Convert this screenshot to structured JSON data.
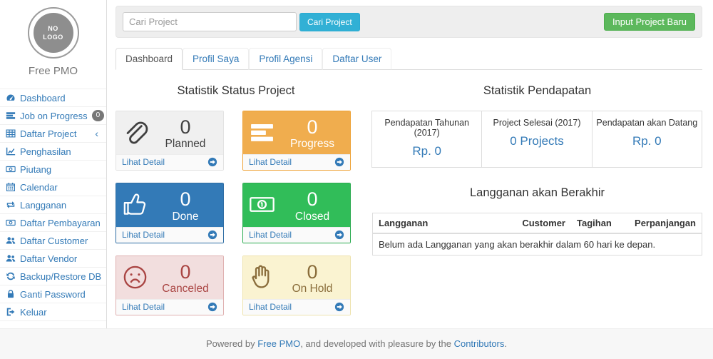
{
  "sidebar": {
    "logo_lines": [
      "NO",
      "LOGO"
    ],
    "brand": "Free PMO",
    "items": [
      {
        "label": "Dashboard",
        "icon": "dashboard-icon"
      },
      {
        "label": "Job on Progress",
        "icon": "tasks-icon",
        "badge": "0"
      },
      {
        "label": "Daftar Project",
        "icon": "table-icon",
        "chevron": "‹"
      },
      {
        "label": "Penghasilan",
        "icon": "line-chart-icon"
      },
      {
        "label": "Piutang",
        "icon": "money-icon"
      },
      {
        "label": "Calendar",
        "icon": "calendar-icon"
      },
      {
        "label": "Langganan",
        "icon": "retweet-icon"
      },
      {
        "label": "Daftar Pembayaran",
        "icon": "money-icon"
      },
      {
        "label": "Daftar Customer",
        "icon": "users-icon"
      },
      {
        "label": "Daftar Vendor",
        "icon": "users-icon"
      },
      {
        "label": "Backup/Restore DB",
        "icon": "refresh-icon"
      },
      {
        "label": "Ganti Password",
        "icon": "lock-icon"
      },
      {
        "label": "Keluar",
        "icon": "sign-out-icon"
      }
    ]
  },
  "topbar": {
    "search_placeholder": "Cari Project",
    "search_button": "Cari Project",
    "new_project_button": "Input Project Baru"
  },
  "tabs": [
    {
      "label": "Dashboard",
      "active": true
    },
    {
      "label": "Profil Saya"
    },
    {
      "label": "Profil Agensi"
    },
    {
      "label": "Daftar User"
    }
  ],
  "status_section": {
    "title": "Statistik Status Project",
    "detail_link": "Lihat Detail",
    "cards": [
      {
        "label": "Planned",
        "value": "0",
        "icon": "paperclip-icon",
        "theme": "default"
      },
      {
        "label": "Progress",
        "value": "0",
        "icon": "tasks-big-icon",
        "theme": "warning"
      },
      {
        "label": "Done",
        "value": "0",
        "icon": "thumbs-up-icon",
        "theme": "primary"
      },
      {
        "label": "Closed",
        "value": "0",
        "icon": "money-bill-icon",
        "theme": "success"
      },
      {
        "label": "Canceled",
        "value": "0",
        "icon": "frown-icon",
        "theme": "danger"
      },
      {
        "label": "On Hold",
        "value": "0",
        "icon": "hand-icon",
        "theme": "onhold"
      }
    ]
  },
  "income_section": {
    "title": "Statistik Pendapatan",
    "stats": [
      {
        "label": "Pendapatan Tahunan (2017)",
        "value": "Rp. 0"
      },
      {
        "label": "Project Selesai (2017)",
        "value": "0 Projects"
      },
      {
        "label": "Pendapatan akan Datang",
        "value": "Rp. 0"
      }
    ]
  },
  "subscription_section": {
    "title": "Langganan akan Berakhir",
    "columns": [
      "Langganan",
      "Customer",
      "Tagihan",
      "Perpanjangan"
    ],
    "empty_message": "Belum ada Langganan yang akan berakhir dalam 60 hari ke depan."
  },
  "footer": {
    "prefix": "Powered by ",
    "link1": "Free PMO",
    "middle": ", and developed with pleasure by the ",
    "link2": "Contributors",
    "suffix": "."
  },
  "colors": {
    "link_primary": "#337ab7",
    "button_info": "#31b0d5",
    "button_success": "#5cb85c",
    "card_warning": "#f0ad4e",
    "card_primary": "#337ab7",
    "card_success": "#31bd59",
    "card_danger_bg": "#f2dede",
    "card_danger_text": "#a94442",
    "card_onhold_bg": "#faf3d1",
    "card_onhold_text": "#8a6d3b",
    "badge_gray": "#777777"
  }
}
